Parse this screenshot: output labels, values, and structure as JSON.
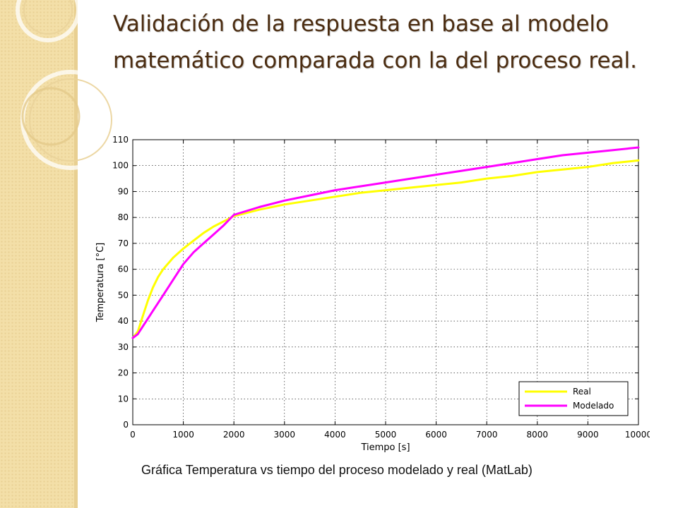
{
  "slide": {
    "title": "Validación de la respuesta en base al modelo matemático comparada con la del proceso real.",
    "caption": "Gráfica Temperatura vs tiempo del proceso modelado y real (MatLab)"
  },
  "colors": {
    "real": "#ffff00",
    "modelado": "#ff00ff",
    "background_band": "#f3dfa8"
  },
  "chart_data": {
    "type": "line",
    "title": "",
    "xlabel": "Tiempo [s]",
    "ylabel": "Temperatura [°C]",
    "xlim": [
      0,
      10000
    ],
    "ylim": [
      0,
      110
    ],
    "xticks": [
      0,
      1000,
      2000,
      3000,
      4000,
      5000,
      6000,
      7000,
      8000,
      9000,
      10000
    ],
    "yticks": [
      0,
      10,
      20,
      30,
      40,
      50,
      60,
      70,
      80,
      90,
      100,
      110
    ],
    "grid": true,
    "legend": "bottom-right",
    "series": [
      {
        "name": "Real",
        "color": "#ffff00",
        "x": [
          0,
          100,
          200,
          300,
          400,
          500,
          600,
          800,
          1000,
          1200,
          1400,
          1600,
          1800,
          2000,
          2500,
          3000,
          3500,
          4000,
          4500,
          5000,
          5500,
          6000,
          6500,
          7000,
          7500,
          8000,
          8500,
          9000,
          9500,
          10000
        ],
        "values": [
          33.5,
          36,
          42,
          48,
          53,
          57,
          60,
          64.5,
          68,
          71,
          74,
          76.5,
          78.5,
          80.5,
          83,
          85,
          86.5,
          88,
          89.5,
          90.5,
          91.5,
          92.5,
          93.5,
          95,
          96,
          97.5,
          98.5,
          99.5,
          101,
          102
        ]
      },
      {
        "name": "Modelado",
        "color": "#ff00ff",
        "x": [
          0,
          100,
          200,
          300,
          400,
          500,
          600,
          800,
          1000,
          1200,
          1400,
          1600,
          1800,
          2000,
          2500,
          3000,
          3500,
          4000,
          4500,
          5000,
          5500,
          6000,
          6500,
          7000,
          7500,
          8000,
          8500,
          9000,
          9500,
          10000
        ],
        "values": [
          33.5,
          35,
          38,
          41,
          44,
          47,
          50,
          56,
          62,
          66.5,
          70,
          73.5,
          77,
          81,
          84,
          86.5,
          88.5,
          90.5,
          92,
          93.5,
          95,
          96.5,
          98,
          99.5,
          101,
          102.5,
          104,
          105,
          106,
          107
        ]
      }
    ]
  }
}
